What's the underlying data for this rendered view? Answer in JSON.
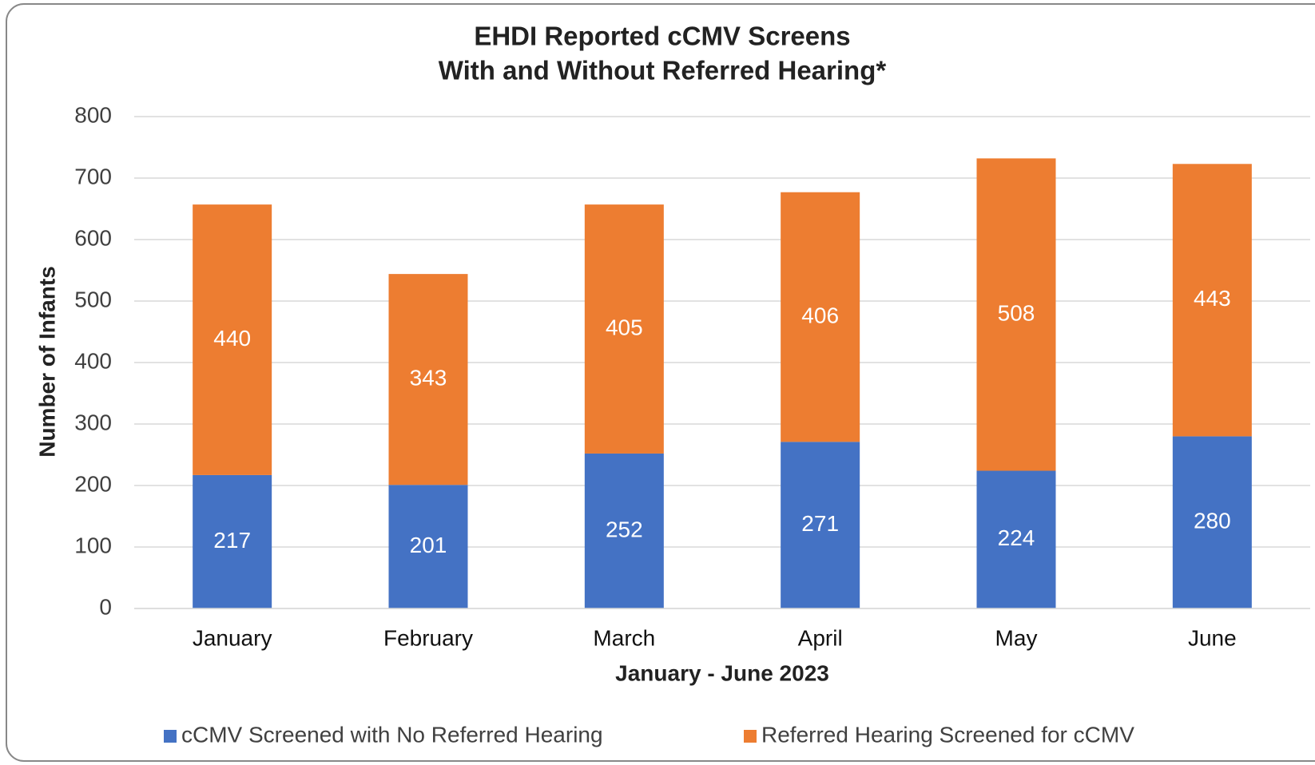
{
  "chart_data": {
    "type": "stacked-bar",
    "title": "EHDI Reported cCMV Screens",
    "subtitle": "With and Without Referred Hearing*",
    "x_label": "January - June 2023",
    "y_label": "Number of Infants",
    "categories": [
      "January",
      "February",
      "March",
      "April",
      "May",
      "June"
    ],
    "series": [
      {
        "name": "cCMV Screened with No Referred Hearing",
        "color": "#4472c4",
        "values": [
          217,
          201,
          252,
          271,
          224,
          280
        ]
      },
      {
        "name": "Referred Hearing Screened for cCMV",
        "color": "#ed7d31",
        "values": [
          440,
          343,
          405,
          406,
          508,
          443
        ]
      }
    ],
    "ylim": [
      0,
      800
    ],
    "yticks": [
      0,
      100,
      200,
      300,
      400,
      500,
      600,
      700,
      800
    ],
    "grid": true,
    "legend": "bottom"
  }
}
